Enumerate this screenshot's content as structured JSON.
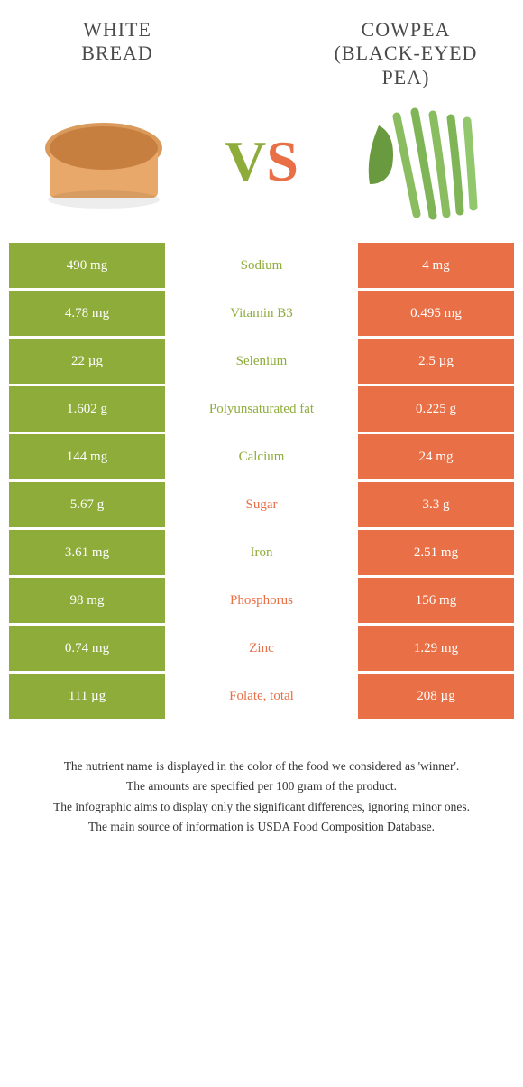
{
  "colors": {
    "left": "#8eac3a",
    "right": "#e86f46",
    "title": "#4a4a4a",
    "vs_v": "#8eac3a",
    "vs_s": "#e86f46"
  },
  "foods": {
    "left_title_line1": "WHITE",
    "left_title_line2": "BREAD",
    "right_title_line1": "COWPEA",
    "right_title_line2": "(BLACK-EYED",
    "right_title_line3": "PEA)"
  },
  "vs": {
    "v": "V",
    "s": "S"
  },
  "rows": [
    {
      "left": "490 mg",
      "label": "Sodium",
      "right": "4 mg",
      "winner": "left"
    },
    {
      "left": "4.78 mg",
      "label": "Vitamin B3",
      "right": "0.495 mg",
      "winner": "left"
    },
    {
      "left": "22 µg",
      "label": "Selenium",
      "right": "2.5 µg",
      "winner": "left"
    },
    {
      "left": "1.602 g",
      "label": "Polyunsaturated fat",
      "right": "0.225 g",
      "winner": "left"
    },
    {
      "left": "144 mg",
      "label": "Calcium",
      "right": "24 mg",
      "winner": "left"
    },
    {
      "left": "5.67 g",
      "label": "Sugar",
      "right": "3.3 g",
      "winner": "right"
    },
    {
      "left": "3.61 mg",
      "label": "Iron",
      "right": "2.51 mg",
      "winner": "left"
    },
    {
      "left": "98 mg",
      "label": "Phosphorus",
      "right": "156 mg",
      "winner": "right"
    },
    {
      "left": "0.74 mg",
      "label": "Zinc",
      "right": "1.29 mg",
      "winner": "right"
    },
    {
      "left": "111 µg",
      "label": "Folate, total",
      "right": "208 µg",
      "winner": "right"
    }
  ],
  "footnotes": [
    "The nutrient name is displayed in the color of the food we considered as 'winner'.",
    "The amounts are specified per 100 gram of the product.",
    "The infographic aims to display only the significant differences, ignoring minor ones.",
    "The main source of information is USDA Food Composition Database."
  ]
}
